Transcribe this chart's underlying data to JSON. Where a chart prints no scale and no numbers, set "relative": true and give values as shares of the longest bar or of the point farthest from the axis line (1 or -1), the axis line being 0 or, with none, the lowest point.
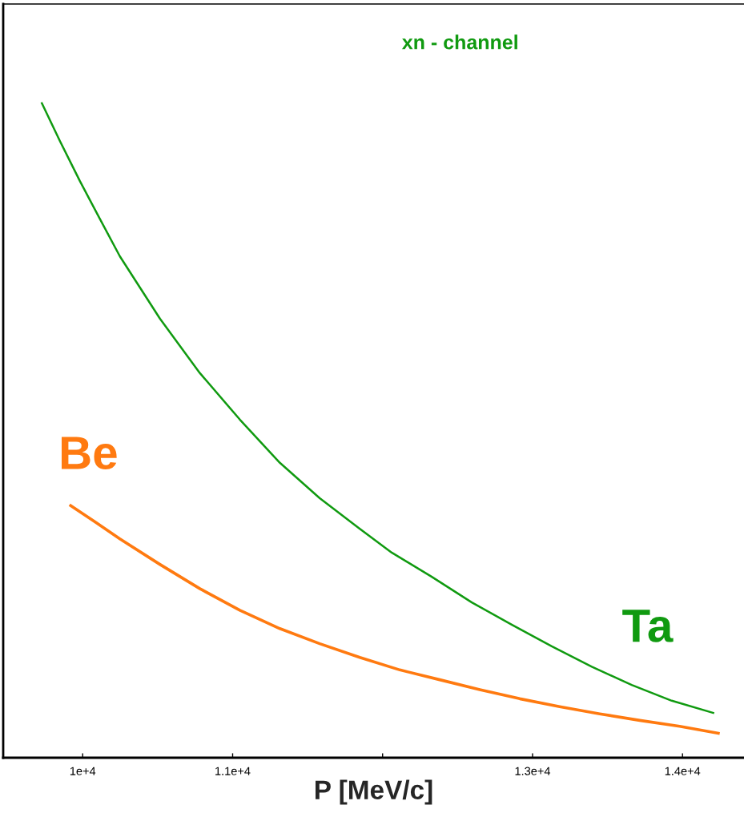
{
  "chart_data": {
    "type": "line",
    "title": "xn - channel",
    "xlabel": "P [MeV/c]",
    "relative": true,
    "xlim": [
      9470,
      14410
    ],
    "xticks": [
      {
        "value": 10000,
        "label": "1e+4"
      },
      {
        "value": 11000,
        "label": "1.1e+4"
      },
      {
        "value": 12000,
        "label": null
      },
      {
        "value": 13000,
        "label": "1.3e+4"
      },
      {
        "value": 14000,
        "label": "1.4e+4"
      }
    ],
    "series": [
      {
        "name": "Ta",
        "color": "#109a10",
        "x": [
          9725,
          9848,
          9981,
          10115,
          10248,
          10515,
          10781,
          11048,
          11315,
          11581,
          11843,
          12061,
          12328,
          12595,
          12861,
          13128,
          13395,
          13661,
          13928,
          14211
        ],
        "values": [
          1.0,
          0.941,
          0.88,
          0.822,
          0.765,
          0.67,
          0.587,
          0.516,
          0.45,
          0.396,
          0.35,
          0.313,
          0.276,
          0.237,
          0.203,
          0.17,
          0.139,
          0.111,
          0.087,
          0.068
        ]
      },
      {
        "name": "Be",
        "color": "#ff7a10",
        "x": [
          9912,
          10088,
          10248,
          10515,
          10781,
          11048,
          11315,
          11581,
          11848,
          12115,
          12381,
          12648,
          12915,
          13181,
          13448,
          13715,
          13981,
          14248
        ],
        "values": [
          0.386,
          0.359,
          0.334,
          0.295,
          0.258,
          0.225,
          0.197,
          0.174,
          0.153,
          0.134,
          0.119,
          0.104,
          0.09,
          0.078,
          0.067,
          0.057,
          0.048,
          0.037
        ]
      }
    ]
  }
}
